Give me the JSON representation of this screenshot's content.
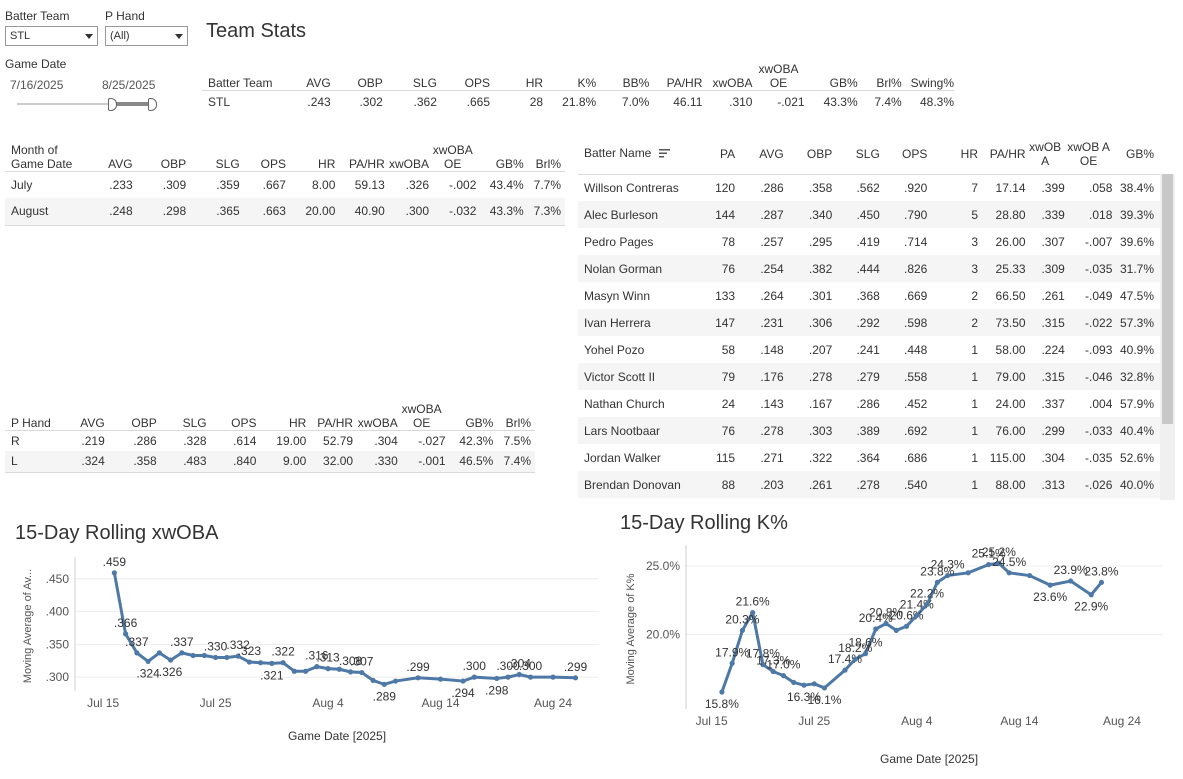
{
  "filters": {
    "batter_team_label": "Batter Team",
    "batter_team_value": "STL",
    "p_hand_label": "P Hand",
    "p_hand_value": "(All)",
    "game_date_label": "Game Date",
    "date_start": "7/16/2025",
    "date_end": "8/25/2025"
  },
  "team_stats": {
    "title": "Team Stats",
    "headers": [
      "Batter Team",
      "AVG",
      "OBP",
      "SLG",
      "OPS",
      "HR",
      "K%",
      "BB%",
      "PA/HR",
      "xwOBA",
      "xwOBA OE",
      "GB%",
      "Brl%",
      "Swing%"
    ],
    "row": [
      "STL",
      ".243",
      ".302",
      ".362",
      ".665",
      "28",
      "21.8%",
      "7.0%",
      "46.11",
      ".310",
      "-.021",
      "43.3%",
      "7.4%",
      "48.3%"
    ]
  },
  "month_table": {
    "headers": [
      "Month of Game Date",
      "AVG",
      "OBP",
      "SLG",
      "OPS",
      "HR",
      "PA/HR",
      "xwOBA",
      "xwOBA OE",
      "GB%",
      "Brl%"
    ],
    "rows": [
      [
        "July",
        ".233",
        ".309",
        ".359",
        ".667",
        "8.00",
        "59.13",
        ".326",
        "-.002",
        "43.4%",
        "7.7%"
      ],
      [
        "August",
        ".248",
        ".298",
        ".365",
        ".663",
        "20.00",
        "40.90",
        ".300",
        "-.032",
        "43.3%",
        "7.3%"
      ]
    ]
  },
  "hand_table": {
    "headers": [
      "P Hand",
      "AVG",
      "OBP",
      "SLG",
      "OPS",
      "HR",
      "PA/HR",
      "xwOBA",
      "xwOBA OE",
      "GB%",
      "Brl%"
    ],
    "rows": [
      [
        "R",
        ".219",
        ".286",
        ".328",
        ".614",
        "19.00",
        "52.79",
        ".304",
        "-.027",
        "42.3%",
        "7.5%"
      ],
      [
        "L",
        ".324",
        ".358",
        ".483",
        ".840",
        "9.00",
        "32.00",
        ".330",
        "-.001",
        "46.5%",
        "7.4%"
      ]
    ]
  },
  "batter_table": {
    "headers": [
      "Batter Name",
      "PA",
      "AVG",
      "OBP",
      "SLG",
      "OPS",
      "HR",
      "PA/HR",
      "xwOB A",
      "xwOB A OE",
      "GB%"
    ],
    "rows": [
      [
        "Willson Contreras",
        "120",
        ".286",
        ".358",
        ".562",
        ".920",
        "7",
        "17.14",
        ".399",
        ".058",
        "38.4%"
      ],
      [
        "Alec Burleson",
        "144",
        ".287",
        ".340",
        ".450",
        ".790",
        "5",
        "28.80",
        ".339",
        ".018",
        "39.3%"
      ],
      [
        "Pedro Pages",
        "78",
        ".257",
        ".295",
        ".419",
        ".714",
        "3",
        "26.00",
        ".307",
        "-.007",
        "39.6%"
      ],
      [
        "Nolan Gorman",
        "76",
        ".254",
        ".382",
        ".444",
        ".826",
        "3",
        "25.33",
        ".309",
        "-.035",
        "31.7%"
      ],
      [
        "Masyn Winn",
        "133",
        ".264",
        ".301",
        ".368",
        ".669",
        "2",
        "66.50",
        ".261",
        "-.049",
        "47.5%"
      ],
      [
        "Ivan Herrera",
        "147",
        ".231",
        ".306",
        ".292",
        ".598",
        "2",
        "73.50",
        ".315",
        "-.022",
        "57.3%"
      ],
      [
        "Yohel Pozo",
        "58",
        ".148",
        ".207",
        ".241",
        ".448",
        "1",
        "58.00",
        ".224",
        "-.093",
        "40.9%"
      ],
      [
        "Victor Scott II",
        "79",
        ".176",
        ".278",
        ".279",
        ".558",
        "1",
        "79.00",
        ".315",
        "-.046",
        "32.8%"
      ],
      [
        "Nathan Church",
        "24",
        ".143",
        ".167",
        ".286",
        ".452",
        "1",
        "24.00",
        ".337",
        ".004",
        "57.9%"
      ],
      [
        "Lars Nootbaar",
        "76",
        ".278",
        ".303",
        ".389",
        ".692",
        "1",
        "76.00",
        ".299",
        "-.033",
        "40.4%"
      ],
      [
        "Jordan Walker",
        "115",
        ".271",
        ".322",
        ".364",
        ".686",
        "1",
        "115.00",
        ".304",
        "-.035",
        "52.6%"
      ],
      [
        "Brendan Donovan",
        "88",
        ".203",
        ".261",
        ".278",
        ".540",
        "1",
        "88.00",
        ".313",
        "-.026",
        "40.0%"
      ]
    ]
  },
  "chart_data": [
    {
      "type": "line",
      "title": "15-Day Rolling xwOBA",
      "xlabel": "Game Date [2025]",
      "ylabel": "Moving Average of Av...",
      "color": "#4e79a7",
      "xticks": [
        {
          "day": 15,
          "label": "Jul 15"
        },
        {
          "day": 25,
          "label": "Jul 25"
        },
        {
          "day": 35,
          "label": "Aug 4"
        },
        {
          "day": 45,
          "label": "Aug 14"
        },
        {
          "day": 55,
          "label": "Aug 24"
        }
      ],
      "yticks": [
        {
          "v": 0.3,
          "label": ".300"
        },
        {
          "v": 0.35,
          "label": ".350"
        },
        {
          "v": 0.4,
          "label": ".400"
        },
        {
          "v": 0.45,
          "label": ".450"
        }
      ],
      "xlim": [
        12.5,
        59
      ],
      "ylim": [
        0.288,
        0.468
      ],
      "points": [
        {
          "day": 16,
          "v": 0.459,
          "label": ".459"
        },
        {
          "day": 17,
          "v": 0.366,
          "label": ".366"
        },
        {
          "day": 18,
          "v": 0.337,
          "label": ".337"
        },
        {
          "day": 19,
          "v": 0.324,
          "label": ".324"
        },
        {
          "day": 20,
          "v": 0.337,
          "label": ""
        },
        {
          "day": 21,
          "v": 0.326,
          "label": ".326"
        },
        {
          "day": 22,
          "v": 0.337,
          "label": ".337"
        },
        {
          "day": 23,
          "v": 0.333,
          "label": ""
        },
        {
          "day": 24,
          "v": 0.333,
          "label": ""
        },
        {
          "day": 25,
          "v": 0.33,
          "label": ".330"
        },
        {
          "day": 26,
          "v": 0.33,
          "label": ""
        },
        {
          "day": 27,
          "v": 0.332,
          "label": ".332"
        },
        {
          "day": 28,
          "v": 0.323,
          "label": ".323"
        },
        {
          "day": 29,
          "v": 0.322,
          "label": ""
        },
        {
          "day": 30,
          "v": 0.321,
          "label": ".321"
        },
        {
          "day": 31,
          "v": 0.322,
          "label": ".322"
        },
        {
          "day": 32,
          "v": 0.309,
          "label": ""
        },
        {
          "day": 33,
          "v": 0.309,
          "label": ""
        },
        {
          "day": 34,
          "v": 0.316,
          "label": ".316"
        },
        {
          "day": 35,
          "v": 0.313,
          "label": ".313"
        },
        {
          "day": 36,
          "v": 0.312,
          "label": ""
        },
        {
          "day": 37,
          "v": 0.308,
          "label": ".308"
        },
        {
          "day": 38,
          "v": 0.307,
          "label": ".307"
        },
        {
          "day": 39,
          "v": 0.295,
          "label": ""
        },
        {
          "day": 40,
          "v": 0.289,
          "label": ".289"
        },
        {
          "day": 41,
          "v": 0.294,
          "label": ""
        },
        {
          "day": 43,
          "v": 0.299,
          "label": ".299"
        },
        {
          "day": 45,
          "v": 0.297,
          "label": ""
        },
        {
          "day": 47,
          "v": 0.294,
          "label": ".294"
        },
        {
          "day": 48,
          "v": 0.3,
          "label": ".300"
        },
        {
          "day": 50,
          "v": 0.298,
          "label": ".298"
        },
        {
          "day": 51,
          "v": 0.3,
          "label": ".300"
        },
        {
          "day": 52,
          "v": 0.304,
          "label": ".304"
        },
        {
          "day": 53,
          "v": 0.3,
          "label": ".300"
        },
        {
          "day": 55,
          "v": 0.3,
          "label": ""
        },
        {
          "day": 57,
          "v": 0.299,
          "label": ".299"
        }
      ]
    },
    {
      "type": "line",
      "title": "15-Day Rolling K%",
      "xlabel": "Game Date [2025]",
      "ylabel": "Moving Average of K%",
      "color": "#4e79a7",
      "xticks": [
        {
          "day": 15,
          "label": "Jul 15"
        },
        {
          "day": 25,
          "label": "Jul 25"
        },
        {
          "day": 35,
          "label": "Aug 4"
        },
        {
          "day": 45,
          "label": "Aug 14"
        },
        {
          "day": 55,
          "label": "Aug 24"
        }
      ],
      "yticks": [
        {
          "v": 20.0,
          "label": "20.0%"
        },
        {
          "v": 25.0,
          "label": "25.0%"
        }
      ],
      "xlim": [
        12.5,
        59
      ],
      "ylim": [
        15.0,
        25.8
      ],
      "points": [
        {
          "day": 16,
          "v": 15.8,
          "label": "15.8%"
        },
        {
          "day": 17,
          "v": 17.9,
          "label": "17.9%"
        },
        {
          "day": 18,
          "v": 20.3,
          "label": "20.3%"
        },
        {
          "day": 19,
          "v": 21.6,
          "label": "21.6%"
        },
        {
          "day": 20,
          "v": 17.8,
          "label": "17.8%"
        },
        {
          "day": 21,
          "v": 17.3,
          "label": "17.3%"
        },
        {
          "day": 22,
          "v": 17.0,
          "label": "17.0%"
        },
        {
          "day": 23,
          "v": 16.5,
          "label": ""
        },
        {
          "day": 24,
          "v": 16.3,
          "label": "16.3%"
        },
        {
          "day": 25,
          "v": 16.4,
          "label": ""
        },
        {
          "day": 26,
          "v": 16.1,
          "label": "16.1%"
        },
        {
          "day": 28,
          "v": 17.4,
          "label": "17.4%"
        },
        {
          "day": 29,
          "v": 18.2,
          "label": "18.2%"
        },
        {
          "day": 30,
          "v": 18.6,
          "label": "18.6%"
        },
        {
          "day": 31,
          "v": 20.4,
          "label": "20.4%"
        },
        {
          "day": 32,
          "v": 20.8,
          "label": "20.8%"
        },
        {
          "day": 33,
          "v": 20.3,
          "label": ""
        },
        {
          "day": 34,
          "v": 20.6,
          "label": "20.6%"
        },
        {
          "day": 35,
          "v": 21.4,
          "label": "21.4%"
        },
        {
          "day": 36,
          "v": 22.2,
          "label": "22.2%"
        },
        {
          "day": 37,
          "v": 23.8,
          "label": "23.8%"
        },
        {
          "day": 38,
          "v": 24.3,
          "label": "24.3%"
        },
        {
          "day": 40,
          "v": 24.5,
          "label": ""
        },
        {
          "day": 42,
          "v": 25.1,
          "label": "25.1%"
        },
        {
          "day": 43,
          "v": 25.2,
          "label": "25.2%"
        },
        {
          "day": 44,
          "v": 24.5,
          "label": "24.5%"
        },
        {
          "day": 46,
          "v": 24.3,
          "label": ""
        },
        {
          "day": 48,
          "v": 23.6,
          "label": "23.6%"
        },
        {
          "day": 50,
          "v": 23.9,
          "label": "23.9%"
        },
        {
          "day": 52,
          "v": 22.9,
          "label": "22.9%"
        },
        {
          "day": 53,
          "v": 23.8,
          "label": "23.8%"
        }
      ]
    }
  ]
}
